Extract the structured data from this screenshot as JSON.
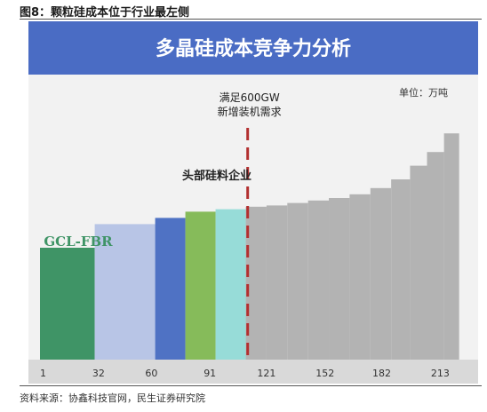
{
  "figure": {
    "caption": "图8：颗粒硅成本位于行业最左侧",
    "source": "资料来源：协鑫科技官网，民生证券研究院"
  },
  "chart_data": {
    "type": "bar",
    "title": "多晶硅成本竞争力分析",
    "unit_label": "单位：万吨",
    "xlabel": "",
    "ylabel": "",
    "x_ticks": [
      "1",
      "32",
      "60",
      "91",
      "121",
      "152",
      "182",
      "213"
    ],
    "xlim": [
      0,
      225
    ],
    "ylim": [
      0,
      100
    ],
    "grid": false,
    "legend": "none",
    "segments": [
      {
        "x_start": 0,
        "x_end": 29,
        "value": 45.0,
        "color": "#3f9466"
      },
      {
        "x_start": 29,
        "x_end": 61,
        "value": 54.5,
        "color": "#b8c5e6"
      },
      {
        "x_start": 61,
        "x_end": 77,
        "value": 57.0,
        "color": "#4f72c4"
      },
      {
        "x_start": 77,
        "x_end": 93,
        "value": 59.5,
        "color": "#86bb5a"
      },
      {
        "x_start": 93,
        "x_end": 109,
        "value": 60.5,
        "color": "#97dcd8"
      },
      {
        "x_start": 109,
        "x_end": 120,
        "value": 61.5,
        "color": "#b3b3b3"
      },
      {
        "x_start": 120,
        "x_end": 131,
        "value": 62.0,
        "color": "#b3b3b3"
      },
      {
        "x_start": 131,
        "x_end": 142,
        "value": 63.0,
        "color": "#b3b3b3"
      },
      {
        "x_start": 142,
        "x_end": 153,
        "value": 64.0,
        "color": "#b3b3b3"
      },
      {
        "x_start": 153,
        "x_end": 164,
        "value": 65.0,
        "color": "#b3b3b3"
      },
      {
        "x_start": 164,
        "x_end": 175,
        "value": 66.5,
        "color": "#b3b3b3"
      },
      {
        "x_start": 175,
        "x_end": 186,
        "value": 69.0,
        "color": "#b3b3b3"
      },
      {
        "x_start": 186,
        "x_end": 196,
        "value": 72.5,
        "color": "#b3b3b3"
      },
      {
        "x_start": 196,
        "x_end": 205,
        "value": 78.0,
        "color": "#b3b3b3"
      },
      {
        "x_start": 205,
        "x_end": 214,
        "value": 83.5,
        "color": "#b3b3b3"
      },
      {
        "x_start": 214,
        "x_end": 222,
        "value": 91.0,
        "color": "#b3b3b3"
      }
    ],
    "demand_line": {
      "x": 110,
      "label_line1": "满足600GW",
      "label_line2": "新增装机需求",
      "color": "#b33030"
    },
    "annotations": [
      {
        "text": "GCL-FBR",
        "color": "#3f9466"
      },
      {
        "text": "头部硅料企业",
        "color": "#222222"
      }
    ],
    "colors": {
      "title_band": "#4a6cc4",
      "background": "#f2f2f2",
      "axis_band": "#d9d9d9"
    }
  }
}
